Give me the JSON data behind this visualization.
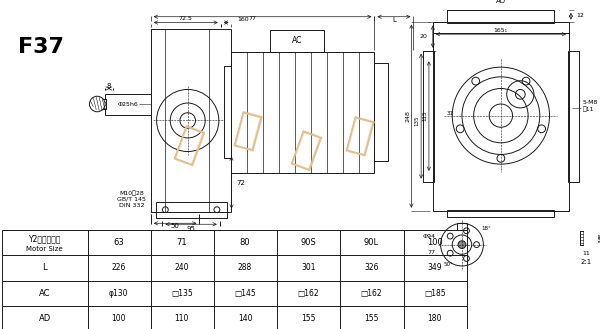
{
  "title": "F37",
  "bg_color": "#ffffff",
  "line_color": "#1a1a1a",
  "table_headers_cn": "Y2电机机座号",
  "table_headers_en": "Motor Size",
  "motor_sizes": [
    "63",
    "71",
    "80",
    "90S",
    "90L",
    "100"
  ],
  "L_vals": [
    "226",
    "240",
    "288",
    "301",
    "326",
    "349"
  ],
  "AC_vals": [
    "φ130",
    "□135",
    "□145",
    "□162",
    "□162",
    "□185"
  ],
  "AD_vals": [
    "100",
    "110",
    "140",
    "155",
    "155",
    "180"
  ],
  "note_m10": "M10淲28\nGB/T 145\nDIN 332",
  "dim_d25": "Φ25h6",
  "watermark_color": "#e0c090"
}
